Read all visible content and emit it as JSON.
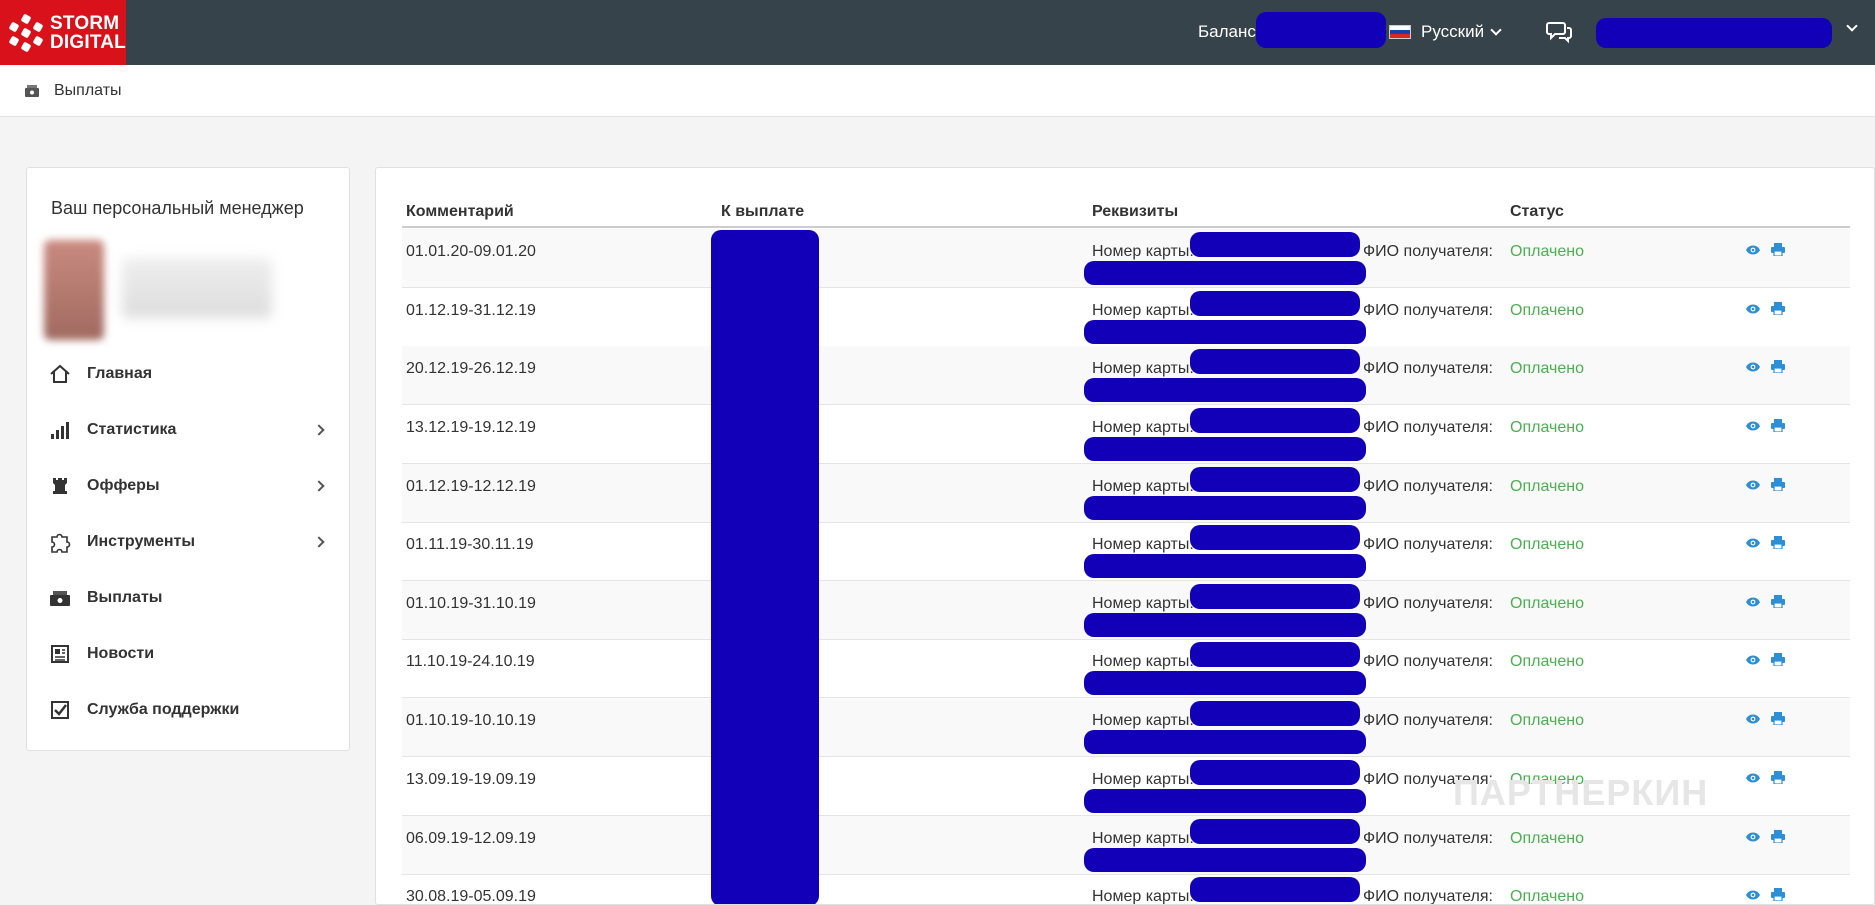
{
  "brand": {
    "line1": "STORM",
    "line2": "DIGITAL"
  },
  "topbar": {
    "balance_label": "Баланс:",
    "language": "Русский"
  },
  "breadcrumb": {
    "label": "Выплаты"
  },
  "sidebar": {
    "manager_title": "Ваш персональный менеджер",
    "items": [
      {
        "label": "Главная",
        "icon": "home-icon",
        "has_submenu": false
      },
      {
        "label": "Статистика",
        "icon": "bar-chart-icon",
        "has_submenu": true
      },
      {
        "label": "Офферы",
        "icon": "chess-rook-icon",
        "has_submenu": true
      },
      {
        "label": "Инструменты",
        "icon": "puzzle-icon",
        "has_submenu": true
      },
      {
        "label": "Выплаты",
        "icon": "money-icon",
        "has_submenu": false
      },
      {
        "label": "Новости",
        "icon": "newspaper-icon",
        "has_submenu": false
      },
      {
        "label": "Служба поддержки",
        "icon": "checkbox-icon",
        "has_submenu": false
      }
    ]
  },
  "table": {
    "columns": [
      "Комментарий",
      "К выплате",
      "Реквизиты",
      "Статус"
    ],
    "card_label": "Номер карты:",
    "recipient_label": "ФИО получателя:",
    "rows": [
      {
        "comment": "01.01.20-09.01.20",
        "status": "Оплачено"
      },
      {
        "comment": "01.12.19-31.12.19",
        "status": "Оплачено"
      },
      {
        "comment": "20.12.19-26.12.19",
        "status": "Оплачено"
      },
      {
        "comment": "13.12.19-19.12.19",
        "status": "Оплачено"
      },
      {
        "comment": "01.12.19-12.12.19",
        "status": "Оплачено"
      },
      {
        "comment": "01.11.19-30.11.19",
        "status": "Оплачено"
      },
      {
        "comment": "01.10.19-31.10.19",
        "status": "Оплачено"
      },
      {
        "comment": "11.10.19-24.10.19",
        "status": "Оплачено"
      },
      {
        "comment": "01.10.19-10.10.19",
        "status": "Оплачено"
      },
      {
        "comment": "13.09.19-19.09.19",
        "status": "Оплачено"
      },
      {
        "comment": "06.09.19-12.09.19",
        "status": "Оплачено"
      },
      {
        "comment": "30.08.19-05.09.19",
        "status": "Оплачено"
      }
    ]
  },
  "watermark": "ПАРТНЕРКИН",
  "colors": {
    "topbar": "#36434a",
    "brand": "#d8111b",
    "status_paid": "#4caf50",
    "action_icon": "#2d8fd5",
    "redaction": "#1200b8"
  }
}
